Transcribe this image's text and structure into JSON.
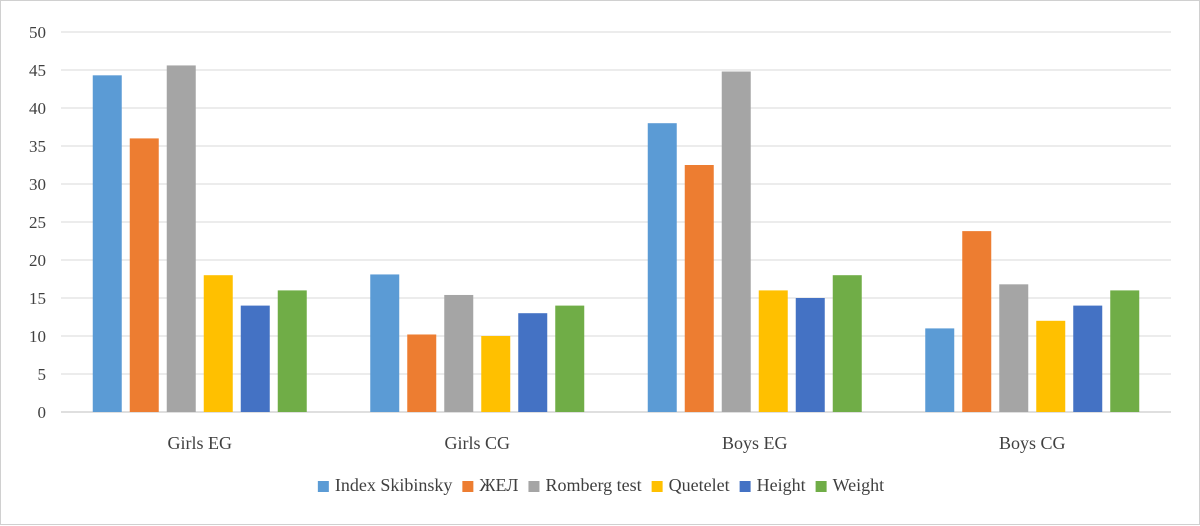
{
  "chart_data": {
    "type": "bar",
    "title": "",
    "xlabel": "",
    "ylabel": "",
    "ylim": [
      0,
      50
    ],
    "yticks": [
      0,
      5,
      10,
      15,
      20,
      25,
      30,
      35,
      40,
      45,
      50
    ],
    "grid": true,
    "legend_position": "bottom",
    "categories": [
      "Girls EG",
      "Girls CG",
      "Boys EG",
      "Boys CG"
    ],
    "series": [
      {
        "name": "Index Skibinsky",
        "color": "#5b9bd5",
        "values": [
          44.3,
          18.1,
          38.0,
          11.0
        ]
      },
      {
        "name": "ЖЕЛ",
        "color": "#ed7d31",
        "values": [
          36.0,
          10.2,
          32.5,
          23.8
        ]
      },
      {
        "name": "Romberg test",
        "color": "#a5a5a5",
        "values": [
          45.6,
          15.4,
          44.8,
          16.8
        ]
      },
      {
        "name": "Quetelet",
        "color": "#ffc000",
        "values": [
          18.0,
          10.0,
          16.0,
          12.0
        ]
      },
      {
        "name": "Height",
        "color": "#4472c4",
        "values": [
          14.0,
          13.0,
          15.0,
          14.0
        ]
      },
      {
        "name": "Weight",
        "color": "#70ad47",
        "values": [
          16.0,
          14.0,
          18.0,
          16.0
        ]
      }
    ]
  }
}
